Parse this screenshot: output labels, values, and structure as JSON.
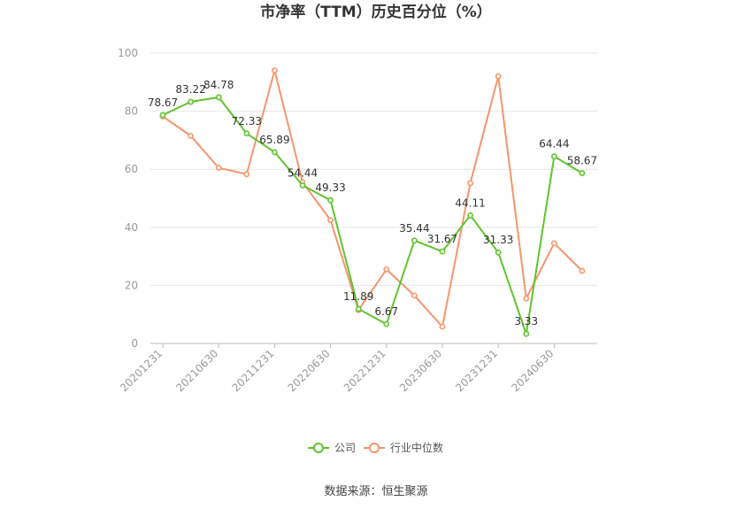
{
  "chart_data": {
    "type": "line",
    "title": "市净率（TTM）历史百分位（%）",
    "x": [
      "20201231",
      "20210331",
      "20210630",
      "20210930",
      "20211231",
      "20220331",
      "20220630",
      "20220930",
      "20221231",
      "20230331",
      "20230630",
      "20230930",
      "20231231",
      "20240331",
      "20240630",
      "20240930"
    ],
    "xticks": [
      "20201231",
      "20210630",
      "20211231",
      "20220630",
      "20221231",
      "20230630",
      "20231231",
      "20240630"
    ],
    "yticks": [
      0,
      20,
      40,
      60,
      80,
      100
    ],
    "ylim": [
      0,
      100
    ],
    "grid": true,
    "legend_position": "bottom",
    "series": [
      {
        "name": "公司",
        "color": "#5ec42e",
        "values": [
          78.67,
          83.22,
          84.78,
          72.33,
          65.89,
          54.44,
          49.33,
          11.89,
          6.67,
          35.44,
          31.67,
          44.11,
          31.33,
          3.33,
          64.44,
          58.67
        ],
        "labels": [
          "78.67",
          "83.22",
          "84.78",
          "72.33",
          "65.89",
          "54.44",
          "49.33",
          "11.89",
          "6.67",
          "35.44",
          "31.67",
          "44.11",
          "31.33",
          "3.33",
          "64.44",
          "58.67"
        ]
      },
      {
        "name": "行业中位数",
        "color": "#f4956c",
        "values": [
          78.2,
          71.5,
          60.5,
          58.3,
          94.0,
          55.5,
          42.5,
          11.5,
          25.5,
          16.5,
          5.8,
          55.2,
          92.0,
          15.5,
          34.5,
          25.0
        ]
      }
    ],
    "source": "数据来源：恒生聚源"
  }
}
